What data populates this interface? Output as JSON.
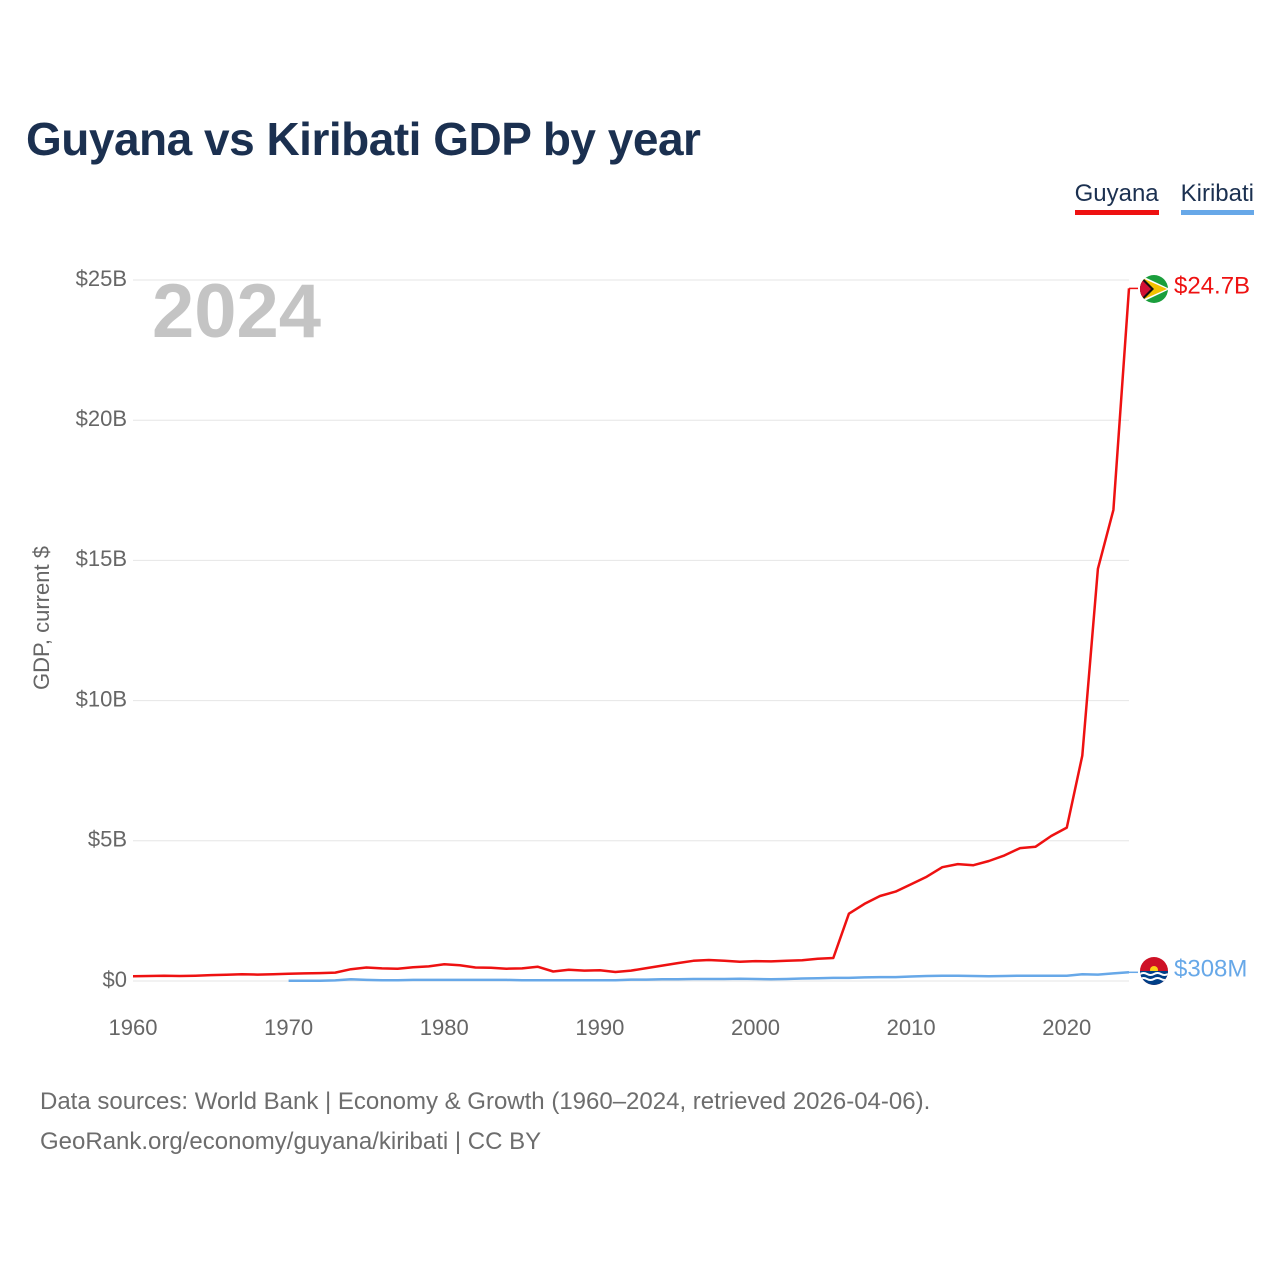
{
  "title": "Guyana vs Kiribati GDP by year",
  "current_year": "2024",
  "legend": [
    {
      "name": "Guyana",
      "color": "#ee1111"
    },
    {
      "name": "Kiribati",
      "color": "#67a8e8"
    }
  ],
  "footer": {
    "line1": "Data sources: World Bank | Economy & Growth (1960–2024, retrieved 2026-04-06).",
    "line2": "GeoRank.org/economy/guyana/kiribati | CC BY"
  },
  "chart_data": {
    "type": "line",
    "title": "Guyana vs Kiribati GDP by year",
    "xlabel": "",
    "ylabel": "GDP, current $",
    "xlim": [
      1960,
      2024
    ],
    "ylim": [
      0,
      25
    ],
    "y_unit": "billions USD",
    "x_ticks": [
      "1960",
      "1970",
      "1980",
      "1990",
      "2000",
      "2010",
      "2020"
    ],
    "x_tick_values": [
      1960,
      1970,
      1980,
      1990,
      2000,
      2010,
      2020
    ],
    "y_ticks": [
      "$0",
      "$5B",
      "$10B",
      "$15B",
      "$20B",
      "$25B"
    ],
    "y_tick_values": [
      0,
      5,
      10,
      15,
      20,
      25
    ],
    "grid": true,
    "series": [
      {
        "name": "Guyana",
        "color": "#ee1111",
        "end_label": "$24.7B",
        "x": [
          1960,
          1961,
          1962,
          1963,
          1964,
          1965,
          1966,
          1967,
          1968,
          1969,
          1970,
          1971,
          1972,
          1973,
          1974,
          1975,
          1976,
          1977,
          1978,
          1979,
          1980,
          1981,
          1982,
          1983,
          1984,
          1985,
          1986,
          1987,
          1988,
          1989,
          1990,
          1991,
          1992,
          1993,
          1994,
          1995,
          1996,
          1997,
          1998,
          1999,
          2000,
          2001,
          2002,
          2003,
          2004,
          2005,
          2006,
          2007,
          2008,
          2009,
          2010,
          2011,
          2012,
          2013,
          2014,
          2015,
          2016,
          2017,
          2018,
          2019,
          2020,
          2021,
          2022,
          2023,
          2024
        ],
        "values": [
          0.17,
          0.18,
          0.19,
          0.18,
          0.19,
          0.21,
          0.22,
          0.24,
          0.23,
          0.24,
          0.26,
          0.27,
          0.28,
          0.3,
          0.42,
          0.48,
          0.45,
          0.44,
          0.49,
          0.52,
          0.6,
          0.56,
          0.48,
          0.47,
          0.44,
          0.45,
          0.51,
          0.34,
          0.4,
          0.37,
          0.38,
          0.32,
          0.37,
          0.46,
          0.55,
          0.64,
          0.72,
          0.75,
          0.72,
          0.69,
          0.71,
          0.7,
          0.72,
          0.74,
          0.79,
          0.82,
          2.4,
          2.75,
          3.03,
          3.19,
          3.45,
          3.72,
          4.06,
          4.17,
          4.13,
          4.28,
          4.48,
          4.74,
          4.79,
          5.17,
          5.47,
          8.04,
          14.7,
          16.8,
          24.7
        ]
      },
      {
        "name": "Kiribati",
        "color": "#67a8e8",
        "end_label": "$308M",
        "x": [
          1970,
          1971,
          1972,
          1973,
          1974,
          1975,
          1976,
          1977,
          1978,
          1979,
          1980,
          1981,
          1982,
          1983,
          1984,
          1985,
          1986,
          1987,
          1988,
          1989,
          1990,
          1991,
          1992,
          1993,
          1994,
          1995,
          1996,
          1997,
          1998,
          1999,
          2000,
          2001,
          2002,
          2003,
          2004,
          2005,
          2006,
          2007,
          2008,
          2009,
          2010,
          2011,
          2012,
          2013,
          2014,
          2015,
          2016,
          2017,
          2018,
          2019,
          2020,
          2021,
          2022,
          2023,
          2024
        ],
        "values": [
          0.01,
          0.01,
          0.01,
          0.02,
          0.06,
          0.04,
          0.03,
          0.03,
          0.04,
          0.04,
          0.04,
          0.04,
          0.04,
          0.04,
          0.04,
          0.03,
          0.03,
          0.03,
          0.03,
          0.03,
          0.03,
          0.03,
          0.05,
          0.05,
          0.06,
          0.06,
          0.07,
          0.07,
          0.07,
          0.08,
          0.07,
          0.06,
          0.07,
          0.09,
          0.1,
          0.11,
          0.11,
          0.13,
          0.14,
          0.14,
          0.16,
          0.18,
          0.19,
          0.19,
          0.18,
          0.17,
          0.18,
          0.19,
          0.19,
          0.19,
          0.19,
          0.24,
          0.23,
          0.27,
          0.31
        ]
      }
    ]
  }
}
